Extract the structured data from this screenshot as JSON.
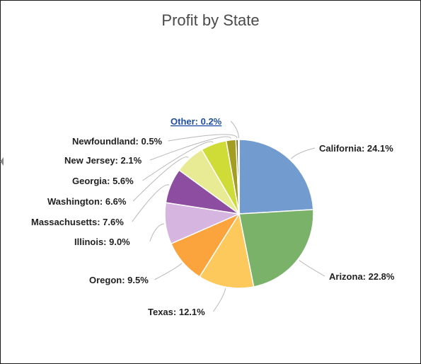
{
  "chart_data": {
    "type": "pie",
    "title": "Profit by State",
    "label_format": "{name}: {pct}",
    "slices": [
      {
        "name": "California",
        "value": 24.1,
        "pct": "24.1%",
        "color": "#729ccf"
      },
      {
        "name": "Arizona",
        "value": 22.8,
        "pct": "22.8%",
        "color": "#7ab26a"
      },
      {
        "name": "Texas",
        "value": 12.1,
        "pct": "12.1%",
        "color": "#fdc85c"
      },
      {
        "name": "Oregon",
        "value": 9.5,
        "pct": "9.5%",
        "color": "#fba43e"
      },
      {
        "name": "Illinois",
        "value": 9.0,
        "pct": "9.0%",
        "color": "#d6b5e0"
      },
      {
        "name": "Massachusetts",
        "value": 7.6,
        "pct": "7.6%",
        "color": "#8d4ea1"
      },
      {
        "name": "Washington",
        "value": 6.6,
        "pct": "6.6%",
        "color": "#e8eb94"
      },
      {
        "name": "Georgia",
        "value": 5.6,
        "pct": "5.6%",
        "color": "#cfdc38"
      },
      {
        "name": "New Jersey",
        "value": 2.1,
        "pct": "2.1%",
        "color": "#a39d21"
      },
      {
        "name": "Newfoundland",
        "value": 0.5,
        "pct": "0.5%",
        "color": "#6f6a1a"
      },
      {
        "name": "Other",
        "value": 0.2,
        "pct": "0.2%",
        "color": "#d9d9d9",
        "is_link": true
      }
    ]
  }
}
